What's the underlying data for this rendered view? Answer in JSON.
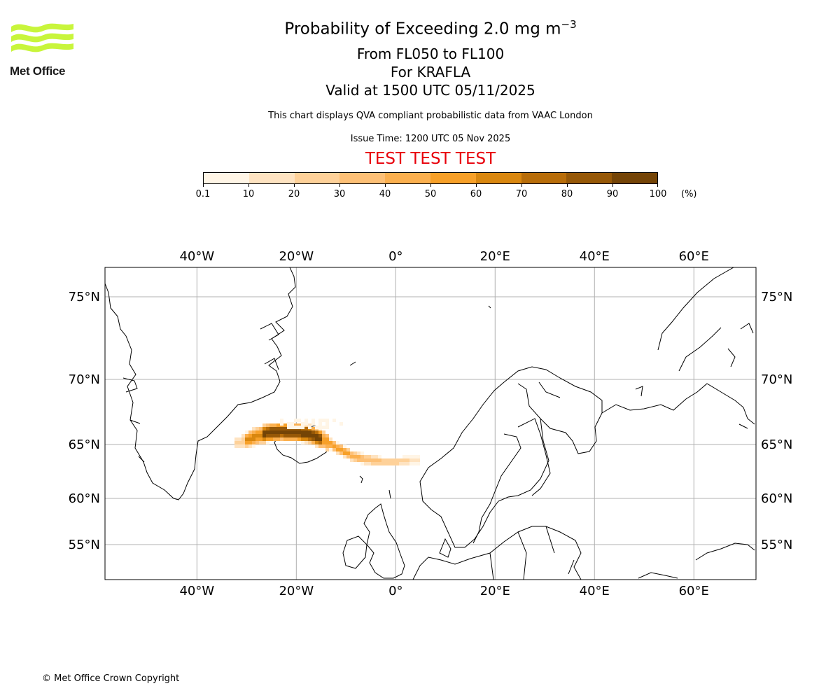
{
  "logo": {
    "text": "Met Office",
    "icon": "met-office-waves-logo",
    "color": "#c8f53b"
  },
  "header": {
    "title_main": "Probability of Exceeding 2.0 mg m",
    "title_exp": "−3",
    "line2": "From FL050 to FL100",
    "line3": "For KRAFLA",
    "line4": "Valid at 1500 UTC 05/11/2025",
    "subtitle": "This chart displays QVA compliant probabilistic data from VAAC London",
    "issue": "Issue Time: 1200 UTC 05 Nov 2025",
    "test_banner": "TEST TEST TEST",
    "test_color": "#e8000b"
  },
  "colorbar": {
    "ticks": [
      "0.1",
      "10",
      "20",
      "30",
      "40",
      "50",
      "60",
      "70",
      "80",
      "90",
      "100"
    ],
    "unit": "(%)",
    "colors": [
      "#fff5e6",
      "#fee3c1",
      "#fed199",
      "#fdc076",
      "#fbb04f",
      "#f7a028",
      "#d9870f",
      "#b86d09",
      "#965807",
      "#744406"
    ]
  },
  "map": {
    "lon_labels": [
      "40°W",
      "20°W",
      "0°",
      "20°E",
      "40°E",
      "60°E"
    ],
    "lat_labels": [
      "75°N",
      "70°N",
      "65°N",
      "60°N",
      "55°N"
    ],
    "lon_values": [
      -40,
      -20,
      0,
      20,
      40,
      60
    ],
    "lat_values": [
      75,
      70,
      65,
      60,
      55
    ],
    "extent": {
      "lon_min": -58.5,
      "lon_max": 72.5,
      "lat_min": 51.5,
      "lat_max": 76.5
    },
    "gridlines": true,
    "source_volcano": "KRAFLA"
  },
  "footer": {
    "copyright": "© Met Office Crown Copyright"
  }
}
